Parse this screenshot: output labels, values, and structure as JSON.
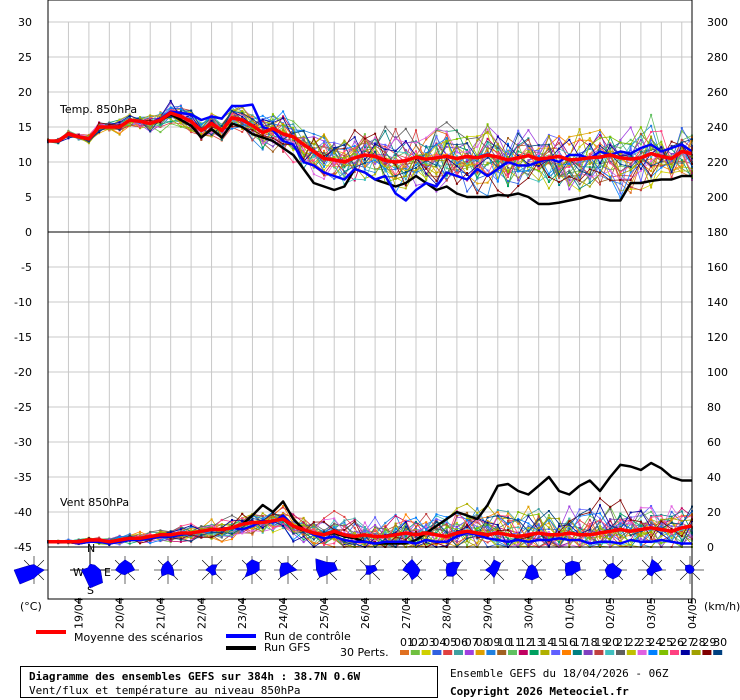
{
  "chart_data": [
    {
      "type": "line",
      "title": "Temp. 850hPa",
      "ylim_left": [
        0,
        30
      ],
      "yticks_left": [
        0,
        5,
        10,
        15,
        20,
        25,
        30
      ],
      "ylim_right": [
        180,
        300
      ],
      "yticks_right": [
        180,
        200,
        220,
        240,
        260,
        280,
        300
      ],
      "grid": true,
      "x_start": "2026-04-18 06Z",
      "x_step_hours": 6,
      "series": [
        {
          "name": "Moyenne des scénarios",
          "color": "#ff0000",
          "values": [
            13,
            13,
            14,
            13.6,
            13.3,
            15,
            15,
            15,
            16,
            15.8,
            15.5,
            16,
            17,
            16.5,
            15.8,
            14.5,
            15.5,
            14.5,
            16.3,
            16,
            15.2,
            14.2,
            14.8,
            14,
            13.6,
            12.5,
            11.5,
            10.5,
            10.3,
            10,
            10.6,
            11,
            10.8,
            10.2,
            10,
            10.2,
            10.7,
            10.4,
            10.6,
            10.8,
            10.5,
            10.8,
            10.6,
            11,
            10.7,
            10.3,
            10.6,
            10.9,
            10.4,
            10.6,
            10.8,
            10.3,
            10.4,
            10.6,
            10.7,
            11,
            10.6,
            10.4,
            10.6,
            11.2,
            10.8,
            10.5,
            11.5,
            11.2
          ]
        },
        {
          "name": "Run de contrôle",
          "color": "#0000ff",
          "values": [
            13,
            13,
            14,
            13.6,
            13.4,
            15,
            15,
            15,
            16,
            15.8,
            15.5,
            16.2,
            17.2,
            17,
            16.8,
            16,
            16.5,
            16.2,
            18,
            18,
            18.2,
            15,
            14.5,
            13,
            12.5,
            10,
            9.5,
            8.5,
            8,
            7.5,
            9,
            8.5,
            7.5,
            8,
            5.5,
            4.5,
            6,
            7,
            6.5,
            8.5,
            8,
            7.5,
            9,
            8,
            9,
            10,
            9.5,
            9.5,
            10,
            10.5,
            10,
            11,
            11,
            10.5,
            11.5,
            11,
            11.5,
            11.2,
            12,
            12.5,
            11.5,
            12,
            12.5,
            11.5
          ]
        },
        {
          "name": "Run GFS",
          "color": "#000000",
          "values": [
            13,
            13,
            14,
            13.6,
            13.3,
            15,
            15,
            15,
            16,
            15.8,
            15.5,
            15.9,
            16.8,
            16,
            15.2,
            13.5,
            14.7,
            13.5,
            15.5,
            15,
            14,
            13.5,
            13,
            12,
            11,
            9,
            7,
            6.5,
            6,
            6.5,
            9,
            8.5,
            7.5,
            7,
            6.5,
            7,
            8,
            7,
            6,
            6.5,
            5.5,
            5,
            5,
            5,
            5.3,
            5.2,
            5.5,
            5,
            4,
            4,
            4.2,
            4.5,
            4.8,
            5.2,
            4.8,
            4.5,
            4.5,
            7,
            7,
            7.3,
            7.5,
            7.5,
            8,
            8
          ]
        }
      ]
    },
    {
      "type": "line",
      "title": "Vent 850hPa",
      "ylim_left": [
        -45,
        0
      ],
      "yticks_left": [
        -45,
        -40,
        -35,
        -30,
        -25,
        -20,
        -15,
        -10,
        -5,
        0
      ],
      "ylim_right": [
        0,
        180
      ],
      "yticks_right": [
        0,
        20,
        40,
        60,
        80,
        100,
        120,
        140,
        160,
        180
      ],
      "grid": true,
      "series": [
        {
          "name": "Moyenne des scénarios",
          "color": "#ff0000",
          "values": [
            3,
            3,
            3,
            3,
            4,
            4,
            3,
            4,
            5,
            5,
            6,
            7,
            7,
            8,
            8,
            9,
            10,
            10,
            11,
            13,
            14,
            14,
            15,
            16,
            12,
            10,
            8,
            7,
            9,
            7,
            6,
            7,
            6,
            6,
            7,
            8,
            7,
            8,
            7,
            6,
            8,
            9,
            8,
            7,
            8,
            7,
            6,
            7,
            8,
            7,
            7,
            8,
            7,
            7,
            8,
            9,
            10,
            9,
            10,
            11,
            10,
            9,
            11,
            12
          ]
        },
        {
          "name": "Run de contrôle",
          "color": "#0000ff",
          "values": [
            3,
            3,
            3,
            2,
            3,
            3,
            2,
            3,
            4,
            4,
            5,
            6,
            6,
            7,
            8,
            9,
            10,
            10,
            11,
            10,
            12,
            15,
            14,
            18,
            12,
            10,
            7,
            5,
            6,
            4,
            3,
            3,
            2,
            3,
            3,
            3,
            2,
            4,
            3,
            3,
            6,
            8,
            7,
            5,
            4,
            3,
            4,
            3,
            4,
            4,
            5,
            4,
            4,
            2,
            3,
            3,
            2,
            4,
            3,
            3,
            4,
            3,
            2,
            2
          ]
        },
        {
          "name": "Run GFS",
          "color": "#000000",
          "values": [
            3,
            3,
            3,
            2,
            3,
            3,
            3,
            3,
            4,
            4,
            5,
            6,
            6,
            7,
            8,
            9,
            10,
            10,
            11,
            13,
            18,
            24,
            20,
            26,
            16,
            10,
            8,
            7,
            8,
            6,
            5,
            3,
            2,
            2,
            2,
            2,
            4,
            8,
            12,
            16,
            20,
            18,
            16,
            24,
            35,
            36,
            32,
            30,
            35,
            40,
            32,
            30,
            35,
            38,
            32,
            40,
            47,
            46,
            44,
            48,
            45,
            40,
            38,
            38
          ]
        }
      ]
    }
  ],
  "members": {
    "label": "30 Perts.",
    "codes": [
      "01",
      "02",
      "03",
      "04",
      "05",
      "06",
      "07",
      "08",
      "09",
      "10",
      "11",
      "12",
      "13",
      "14",
      "15",
      "16",
      "17",
      "18",
      "19",
      "20",
      "21",
      "22",
      "23",
      "24",
      "25",
      "26",
      "27",
      "28",
      "29",
      "30"
    ],
    "colors": [
      "#e07020",
      "#70c040",
      "#d0d000",
      "#3060e0",
      "#e04040",
      "#40a0a0",
      "#a040e0",
      "#e0a000",
      "#2080e0",
      "#a06020",
      "#60c060",
      "#c00060",
      "#00a060",
      "#b0b000",
      "#6060ff",
      "#ff8000",
      "#008080",
      "#8040c0",
      "#c04040",
      "#40c0c0",
      "#606060",
      "#c0c000",
      "#e060e0",
      "#0080ff",
      "#80c000",
      "#ff4080",
      "#0000a0",
      "#a0a000",
      "#800000",
      "#004080"
    ]
  },
  "dates": [
    "19/04",
    "20/04",
    "21/04",
    "22/04",
    "23/04",
    "24/04",
    "25/04",
    "26/04",
    "27/04",
    "28/04",
    "29/04",
    "30/04",
    "01/05",
    "02/05",
    "03/05",
    "04/05"
  ],
  "units": {
    "left": "(°C)",
    "right": "(km/h)"
  },
  "rose": {
    "n": "N",
    "s": "S",
    "w": "W",
    "e": "E"
  },
  "legend": {
    "mean": "Moyenne des scénarios",
    "control": "Run de contrôle",
    "gfs": "Run GFS"
  },
  "info": {
    "title": "Diagramme des ensembles GEFS sur 384h : 38.7N 0.6W",
    "subtitle": "Vent/flux et température au niveau 850hPa",
    "run": "Ensemble GEFS du 18/04/2026 - 06Z",
    "copyright": "Copyright 2026 Meteociel.fr"
  },
  "colors": {
    "grid": "#c8c8c8",
    "frame": "#000000",
    "rose": "#0000ff",
    "mean": "#ff0000",
    "control": "#0000ff",
    "gfs": "#000000"
  }
}
